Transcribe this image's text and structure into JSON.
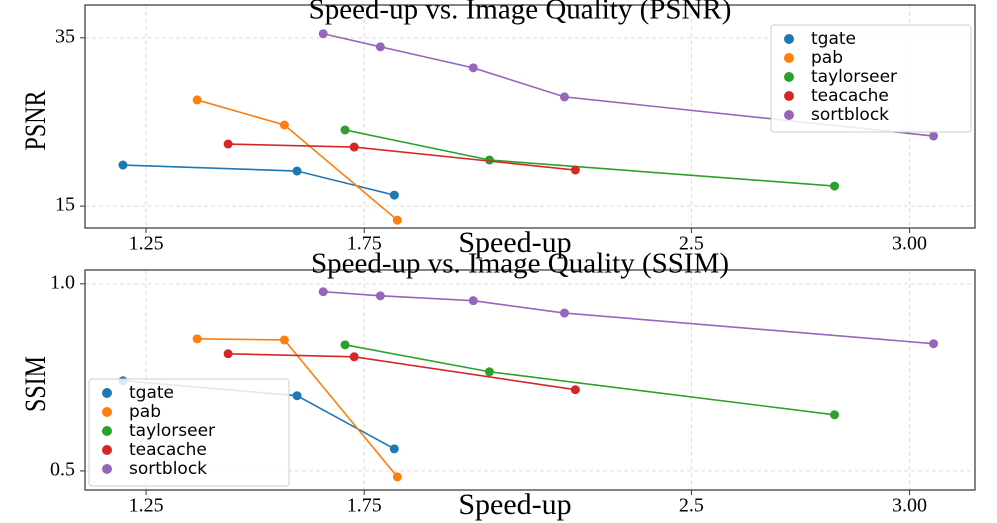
{
  "chart_data": [
    {
      "type": "line",
      "title": "Speed-up vs. Image Quality (PSNR)",
      "x_label": "Speed-up",
      "y_label": "PSNR",
      "xlim": [
        1.11,
        3.15
      ],
      "xticks": [
        1.25,
        1.75,
        2.5,
        {
          "value": 3,
          "label": "3.00"
        }
      ],
      "ylim": [
        12.4,
        38.9
      ],
      "yticks": [
        15,
        35
      ],
      "grid": true,
      "legend": "upper right",
      "series": [
        {
          "name": "tgate",
          "color": "#1f77b4",
          "x": [
            1.197,
            1.596,
            1.819
          ],
          "values": [
            19.88,
            19.17,
            16.31
          ]
        },
        {
          "name": "pab",
          "color": "#ff7f0e",
          "x": [
            1.367,
            1.567,
            1.826
          ],
          "values": [
            27.62,
            24.64,
            13.33
          ]
        },
        {
          "name": "taylorseer",
          "color": "#2ca02c",
          "x": [
            1.706,
            2.037,
            2.828
          ],
          "values": [
            24.05,
            20.48,
            17.38
          ]
        },
        {
          "name": "teacache",
          "color": "#d62728",
          "x": [
            1.438,
            1.727,
            2.234
          ],
          "values": [
            22.38,
            22.02,
            19.29
          ]
        },
        {
          "name": "sortblock",
          "color": "#9467bd",
          "x": [
            1.656,
            1.787,
            2.0,
            2.209,
            3.055
          ],
          "values": [
            35.48,
            33.93,
            31.43,
            27.98,
            23.33
          ]
        }
      ]
    },
    {
      "type": "line",
      "title": "Speed-up vs. Image Quality (SSIM)",
      "x_label": "Speed-up",
      "y_label": "SSIM",
      "xlim": [
        1.11,
        3.15
      ],
      "xticks": [
        1.25,
        1.75,
        2.5,
        {
          "value": 3,
          "label": "3.00"
        }
      ],
      "ylim": [
        0.449,
        1.037
      ],
      "yticks": [
        {
          "value": 1,
          "label": "1.0"
        },
        0.5
      ],
      "grid": true,
      "legend": "lower left",
      "series": [
        {
          "name": "tgate",
          "color": "#1f77b4",
          "x": [
            1.197,
            1.596,
            1.819
          ],
          "values": [
            0.741,
            0.701,
            0.559
          ]
        },
        {
          "name": "pab",
          "color": "#ff7f0e",
          "x": [
            1.367,
            1.567,
            1.826
          ],
          "values": [
            0.853,
            0.85,
            0.484
          ]
        },
        {
          "name": "taylorseer",
          "color": "#2ca02c",
          "x": [
            1.706,
            2.037,
            2.828
          ],
          "values": [
            0.837,
            0.765,
            0.65
          ]
        },
        {
          "name": "teacache",
          "color": "#d62728",
          "x": [
            1.438,
            1.727,
            2.234
          ],
          "values": [
            0.813,
            0.805,
            0.717
          ]
        },
        {
          "name": "sortblock",
          "color": "#9467bd",
          "x": [
            1.656,
            1.787,
            2.0,
            2.209,
            3.055
          ],
          "values": [
            0.979,
            0.968,
            0.955,
            0.922,
            0.84
          ]
        }
      ]
    }
  ]
}
